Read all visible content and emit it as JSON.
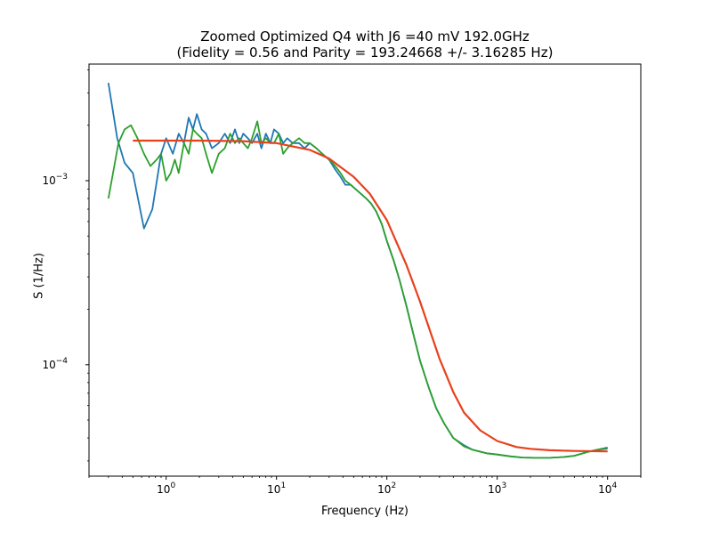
{
  "chart_data": {
    "type": "line",
    "title": "Zoomed Optimized Q4 with J6 =40 mV 192.0GHz",
    "subtitle": "(Fidelity = 0.56 and Parity = 193.24668 +/- 3.16285 Hz)",
    "xlabel": "Frequency (Hz)",
    "ylabel": "S (1/Hz)",
    "xscale": "log",
    "yscale": "log",
    "xlim": [
      0.2,
      20000
    ],
    "ylim": [
      2.48e-05,
      0.0043
    ],
    "grid": false,
    "legend": "none",
    "x_ticks": [
      {
        "value": 1,
        "base": "10",
        "exp": "0"
      },
      {
        "value": 10,
        "base": "10",
        "exp": "1"
      },
      {
        "value": 100,
        "base": "10",
        "exp": "2"
      },
      {
        "value": 1000,
        "base": "10",
        "exp": "3"
      },
      {
        "value": 10000,
        "base": "10",
        "exp": "4"
      }
    ],
    "y_ticks": [
      {
        "value": 0.0001,
        "base": "10",
        "exp": "−4"
      },
      {
        "value": 0.001,
        "base": "10",
        "exp": "−3"
      }
    ],
    "series": [
      {
        "color": "#1f77b4",
        "x": [
          0.3,
          0.36,
          0.42,
          0.5,
          0.63,
          0.75,
          0.9,
          1.0,
          1.15,
          1.3,
          1.45,
          1.6,
          1.75,
          1.9,
          2.1,
          2.3,
          2.6,
          3.0,
          3.4,
          3.8,
          4.2,
          4.6,
          5.0,
          5.5,
          6.0,
          6.7,
          7.3,
          8.0,
          8.8,
          9.5,
          10.5,
          11.5,
          12.5,
          14,
          16,
          18,
          20,
          23,
          26,
          30,
          34,
          38,
          42,
          47,
          52,
          58,
          65,
          72,
          80,
          90,
          100,
          115,
          130,
          150,
          170,
          200,
          240,
          280,
          330,
          400,
          500,
          600,
          800,
          1000,
          1300,
          1700,
          2200,
          3000,
          4000,
          5000,
          6500,
          8000,
          10000
        ],
        "y": [
          0.0034,
          0.0017,
          0.00125,
          0.0011,
          0.00055,
          0.0007,
          0.0014,
          0.0017,
          0.0014,
          0.0018,
          0.0016,
          0.0022,
          0.0019,
          0.0023,
          0.0019,
          0.0018,
          0.0015,
          0.0016,
          0.0018,
          0.0016,
          0.0019,
          0.0016,
          0.0018,
          0.0017,
          0.0016,
          0.0018,
          0.0015,
          0.0018,
          0.0016,
          0.0019,
          0.0018,
          0.0016,
          0.0017,
          0.0016,
          0.0016,
          0.0015,
          0.0016,
          0.0015,
          0.0014,
          0.0013,
          0.00115,
          0.00105,
          0.00095,
          0.00095,
          0.0009,
          0.00085,
          0.0008,
          0.00075,
          0.00068,
          0.00058,
          0.00047,
          0.00037,
          0.00029,
          0.00021,
          0.000155,
          0.000105,
          7.5e-05,
          5.8e-05,
          4.8e-05,
          4e-05,
          3.65e-05,
          3.45e-05,
          3.3e-05,
          3.25e-05,
          3.18e-05,
          3.13e-05,
          3.12e-05,
          3.12e-05,
          3.15e-05,
          3.2e-05,
          3.35e-05,
          3.45e-05,
          3.5e-05
        ]
      },
      {
        "color": "#2ca02c",
        "x": [
          0.3,
          0.33,
          0.37,
          0.42,
          0.48,
          0.55,
          0.63,
          0.72,
          0.82,
          0.9,
          1.0,
          1.1,
          1.2,
          1.3,
          1.45,
          1.6,
          1.75,
          1.9,
          2.1,
          2.3,
          2.6,
          3.0,
          3.4,
          3.8,
          4.2,
          4.6,
          5.0,
          5.5,
          6.0,
          6.7,
          7.3,
          8.0,
          8.8,
          9.5,
          10.5,
          11.5,
          12.5,
          14,
          16,
          18,
          20,
          23,
          26,
          30,
          34,
          38,
          42,
          47,
          52,
          58,
          65,
          72,
          80,
          90,
          100,
          115,
          130,
          150,
          170,
          200,
          240,
          280,
          330,
          400,
          500,
          600,
          800,
          1000,
          1300,
          1700,
          2200,
          3000,
          4000,
          5000,
          6500,
          8000,
          10000
        ],
        "y": [
          0.0008,
          0.0011,
          0.0016,
          0.0019,
          0.002,
          0.0017,
          0.0014,
          0.0012,
          0.0013,
          0.0014,
          0.001,
          0.0011,
          0.0013,
          0.0011,
          0.0016,
          0.0014,
          0.0019,
          0.0018,
          0.0017,
          0.0014,
          0.0011,
          0.0014,
          0.0015,
          0.0018,
          0.0016,
          0.0017,
          0.0016,
          0.0015,
          0.0017,
          0.0021,
          0.0016,
          0.0017,
          0.0016,
          0.0016,
          0.0018,
          0.0014,
          0.0015,
          0.0016,
          0.0017,
          0.0016,
          0.0016,
          0.0015,
          0.0014,
          0.0013,
          0.0012,
          0.0011,
          0.001,
          0.00095,
          0.0009,
          0.00085,
          0.0008,
          0.00075,
          0.00068,
          0.00058,
          0.00047,
          0.00037,
          0.00029,
          0.00021,
          0.000155,
          0.000105,
          7.5e-05,
          5.8e-05,
          4.8e-05,
          4e-05,
          3.6e-05,
          3.45e-05,
          3.3e-05,
          3.25e-05,
          3.18e-05,
          3.13e-05,
          3.12e-05,
          3.12e-05,
          3.15e-05,
          3.2e-05,
          3.35e-05,
          3.45e-05,
          3.55e-05
        ]
      },
      {
        "color": "#e8401c",
        "x": [
          0.5,
          1,
          2,
          5,
          10,
          20,
          30,
          50,
          70,
          100,
          150,
          200,
          300,
          400,
          500,
          700,
          1000,
          1500,
          2000,
          3000,
          5000,
          10000
        ],
        "y": [
          0.00165,
          0.00165,
          0.00165,
          0.00164,
          0.0016,
          0.00147,
          0.00132,
          0.00105,
          0.00085,
          0.00061,
          0.00035,
          0.00022,
          0.000108,
          7.1e-05,
          5.5e-05,
          4.4e-05,
          3.85e-05,
          3.57e-05,
          3.49e-05,
          3.43e-05,
          3.4e-05,
          3.38e-05
        ]
      }
    ]
  }
}
